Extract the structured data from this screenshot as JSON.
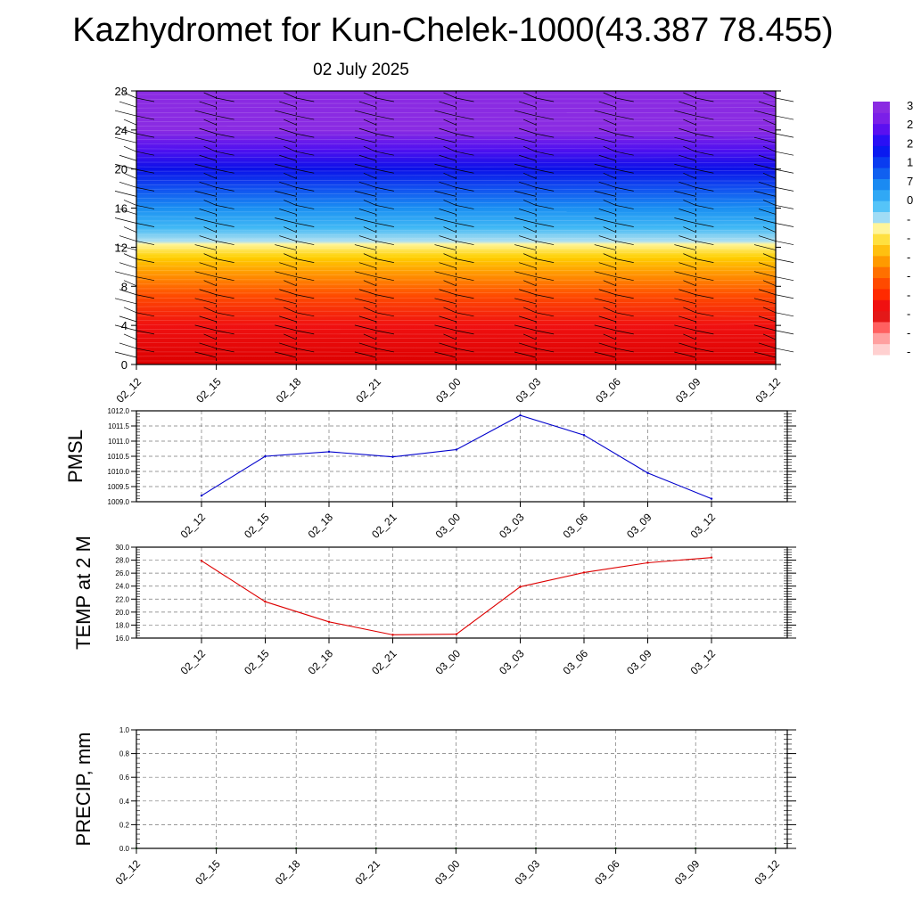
{
  "header": {
    "title": "Kazhydromet for Kun-Chelek-1000(43.387 78.455)",
    "subtitle": "02 July 2025"
  },
  "colors": {
    "pmsl_line": "#0000cc",
    "temp_line": "#dd0000",
    "precip_line": "#006400",
    "colorbar": [
      "#8a2be2",
      "#7b1fe8",
      "#5a10f0",
      "#2a10f5",
      "#0a1af0",
      "#0a3cf0",
      "#1060f0",
      "#1a8af2",
      "#30a8f5",
      "#55c4f8",
      "#a0dcf5",
      "#fff59a",
      "#ffe040",
      "#ffc010",
      "#ff9a00",
      "#ff7000",
      "#ff4a00",
      "#ff2a00",
      "#f01010",
      "#e41818",
      "#ff6060",
      "#ffa0a0",
      "#ffd0d0"
    ]
  },
  "colorbar": {
    "labels": [
      "3",
      "2",
      "2",
      "1",
      "7",
      "0",
      "-",
      "-",
      "-",
      "-",
      "-",
      "-",
      "-",
      "-"
    ]
  },
  "chart_data": [
    {
      "type": "heatmap",
      "categories": [
        "02_12",
        "02_15",
        "02_18",
        "02_21",
        "03_00",
        "03_03",
        "03_06",
        "03_09",
        "03_12"
      ],
      "y_ticks": [
        "0",
        "4",
        "8",
        "12",
        "16",
        "20",
        "24",
        "28"
      ],
      "ylim": [
        0,
        28
      ],
      "color_stops": [
        {
          "y": 0,
          "color": "#dc0000"
        },
        {
          "y": 4,
          "color": "#f01010"
        },
        {
          "y": 7,
          "color": "#ff4a00"
        },
        {
          "y": 9,
          "color": "#ff8c00"
        },
        {
          "y": 11,
          "color": "#ffd000"
        },
        {
          "y": 12.3,
          "color": "#fff59a"
        },
        {
          "y": 12.6,
          "color": "#b0e0f0"
        },
        {
          "y": 14,
          "color": "#40b8f5"
        },
        {
          "y": 16,
          "color": "#1a8ff2"
        },
        {
          "y": 18,
          "color": "#1050f0"
        },
        {
          "y": 20,
          "color": "#0a10e8"
        },
        {
          "y": 22,
          "color": "#5010f0"
        },
        {
          "y": 24,
          "color": "#8a2be2"
        },
        {
          "y": 28,
          "color": "#8a2be2"
        }
      ]
    },
    {
      "type": "line",
      "ylabel": "PMSL",
      "categories": [
        "02_12",
        "02_15",
        "02_18",
        "02_21",
        "03_00",
        "03_03",
        "03_06",
        "03_09",
        "03_12"
      ],
      "values": [
        1009.2,
        1010.5,
        1010.65,
        1010.48,
        1010.72,
        1011.85,
        1011.2,
        1009.95,
        1009.1
      ],
      "ylim": [
        1009.0,
        1012.0
      ],
      "y_ticks": [
        "1009.0",
        "1009.5",
        "1010.0",
        "1010.5",
        "1011.0",
        "1011.5",
        "1012.0"
      ],
      "grid": true
    },
    {
      "type": "line",
      "ylabel": "TEMP at 2 M",
      "categories": [
        "02_12",
        "02_15",
        "02_18",
        "02_21",
        "03_00",
        "03_03",
        "03_06",
        "03_09",
        "03_12"
      ],
      "values": [
        27.9,
        21.6,
        18.5,
        16.5,
        16.6,
        23.9,
        26.1,
        27.6,
        28.4
      ],
      "ylim": [
        16.0,
        30.0
      ],
      "y_ticks": [
        "16.0",
        "18.0",
        "20.0",
        "22.0",
        "24.0",
        "26.0",
        "28.0",
        "30.0"
      ],
      "grid": true
    },
    {
      "type": "line",
      "ylabel": "PRECIP, mm",
      "categories": [
        "02_12",
        "02_15",
        "02_18",
        "02_21",
        "03_00",
        "03_03",
        "03_06",
        "03_09",
        "03_12"
      ],
      "values": [
        0,
        0,
        0,
        0,
        0,
        0,
        0,
        0,
        0
      ],
      "ylim": [
        0.0,
        1.0
      ],
      "y_ticks": [
        "0.0",
        "0.2",
        "0.4",
        "0.6",
        "0.8",
        "1.0"
      ],
      "grid": true
    }
  ]
}
